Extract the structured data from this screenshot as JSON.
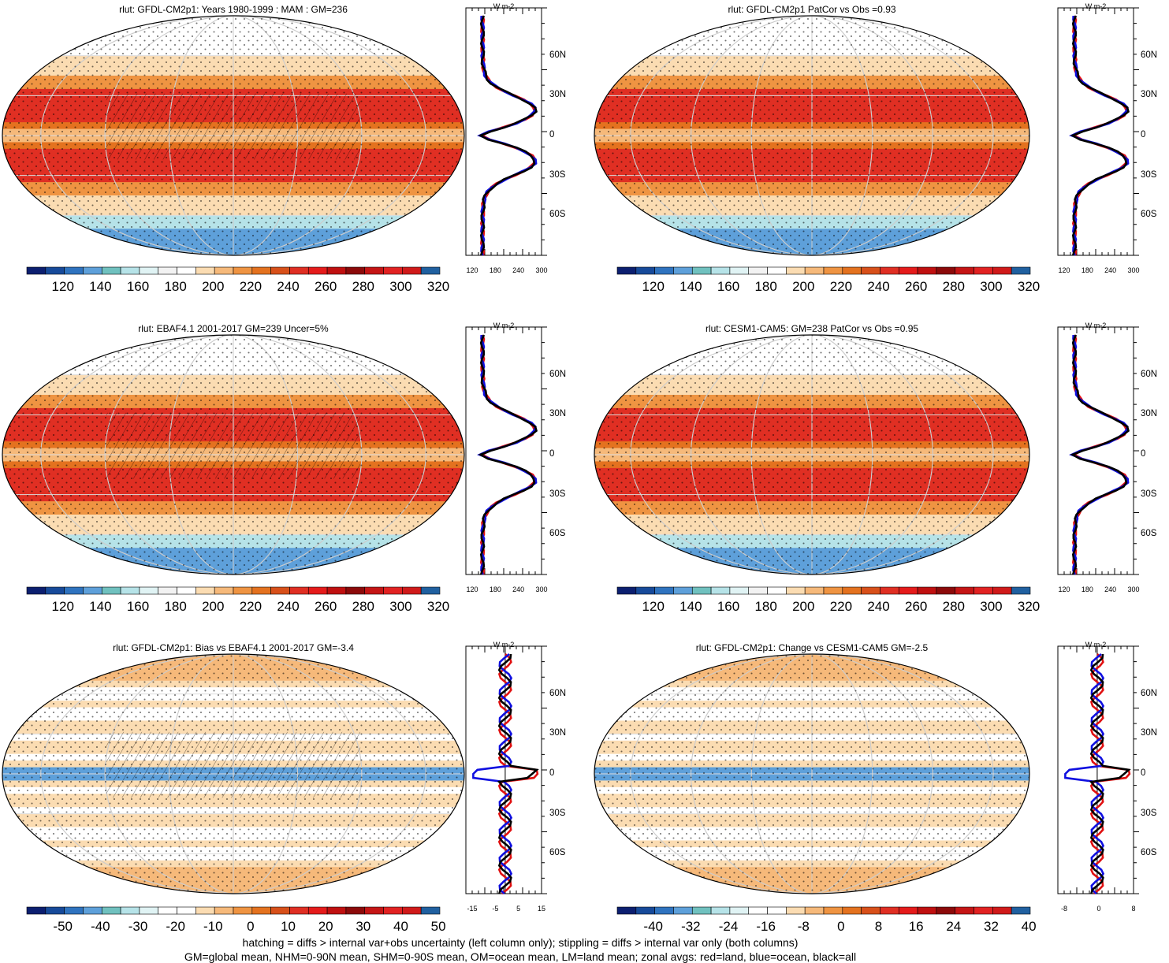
{
  "units": "W m-2",
  "lat_labels": [
    "60N",
    "30N",
    "0",
    "30S",
    "60S"
  ],
  "mean_palette": [
    "#0c1f70",
    "#174a9a",
    "#2f73bf",
    "#5ea0da",
    "#70c1bf",
    "#b6e3e8",
    "#e0f3f4",
    "#f2f2f2",
    "#ffffff",
    "#fbdcb2",
    "#f6b97a",
    "#ef9442",
    "#e4721f",
    "#d8501a",
    "#e02f23",
    "#e51b1b",
    "#c01010",
    "#8c0a0a",
    "#c51515",
    "#e22222",
    "#d01a1a",
    "#2060a0"
  ],
  "diff_palette": [
    "#0c1f70",
    "#174a9a",
    "#2f73bf",
    "#5ea0da",
    "#70c1bf",
    "#b6e3e8",
    "#e0f3f4",
    "#ffffff",
    "#ffffff",
    "#fbdcb2",
    "#f6b97a",
    "#ef9442",
    "#e4721f",
    "#d8501a",
    "#e02f23",
    "#e51b1b",
    "#c01010",
    "#8c0a0a",
    "#c51515",
    "#e22222",
    "#d01a1a",
    "#2060a0"
  ],
  "panels": [
    {
      "title": "rlut: GFDL-CM2p1: Years 1980-1999 : MAM : GM=236",
      "cbar": [
        "120",
        "140",
        "160",
        "180",
        "200",
        "220",
        "240",
        "260",
        "280",
        "300",
        "320"
      ],
      "zonal_ticks": [
        "120",
        "180",
        "240",
        "300"
      ],
      "type": "mean",
      "hatch": true
    },
    {
      "title": "rlut: GFDL-CM2p1 PatCor vs Obs =0.93",
      "cbar": [
        "120",
        "140",
        "160",
        "180",
        "200",
        "220",
        "240",
        "260",
        "280",
        "300",
        "320"
      ],
      "zonal_ticks": [
        "120",
        "180",
        "240",
        "300"
      ],
      "type": "mean",
      "hatch": false
    },
    {
      "title": "rlut: EBAF4.1 2001-2017 GM=239 Uncer=5%",
      "cbar": [
        "120",
        "140",
        "160",
        "180",
        "200",
        "220",
        "240",
        "260",
        "280",
        "300",
        "320"
      ],
      "zonal_ticks": [
        "120",
        "180",
        "240",
        "300"
      ],
      "type": "mean",
      "hatch": true
    },
    {
      "title": "rlut: CESM1-CAM5: GM=238 PatCor vs Obs =0.95",
      "cbar": [
        "120",
        "140",
        "160",
        "180",
        "200",
        "220",
        "240",
        "260",
        "280",
        "300",
        "320"
      ],
      "zonal_ticks": [
        "120",
        "180",
        "240",
        "300"
      ],
      "type": "mean",
      "hatch": false
    },
    {
      "title": "rlut: GFDL-CM2p1: Bias vs EBAF4.1 2001-2017 GM=-3.4",
      "cbar": [
        "-50",
        "-40",
        "-30",
        "-20",
        "-10",
        "0",
        "10",
        "20",
        "30",
        "40",
        "50"
      ],
      "zonal_ticks": [
        "-15",
        "-5",
        "5",
        "15"
      ],
      "type": "diff",
      "hatch": true
    },
    {
      "title": "rlut: GFDL-CM2p1: Change vs CESM1-CAM5 GM=-2.5",
      "cbar": [
        "-40",
        "-32",
        "-24",
        "-16",
        "-8",
        "0",
        "8",
        "16",
        "24",
        "32",
        "40"
      ],
      "zonal_ticks": [
        "-8",
        "0",
        "8"
      ],
      "type": "diff",
      "hatch": false
    }
  ],
  "footer": {
    "line1": "hatching = diffs > internal var+obs uncertainty (left column only); stippling = diffs > internal var only (both columns)",
    "line2": "GM=global mean, NHM=0-90N mean, SHM=0-90S mean, OM=ocean mean, LM=land mean; zonal avgs: red=land, blue=ocean, black=all"
  }
}
